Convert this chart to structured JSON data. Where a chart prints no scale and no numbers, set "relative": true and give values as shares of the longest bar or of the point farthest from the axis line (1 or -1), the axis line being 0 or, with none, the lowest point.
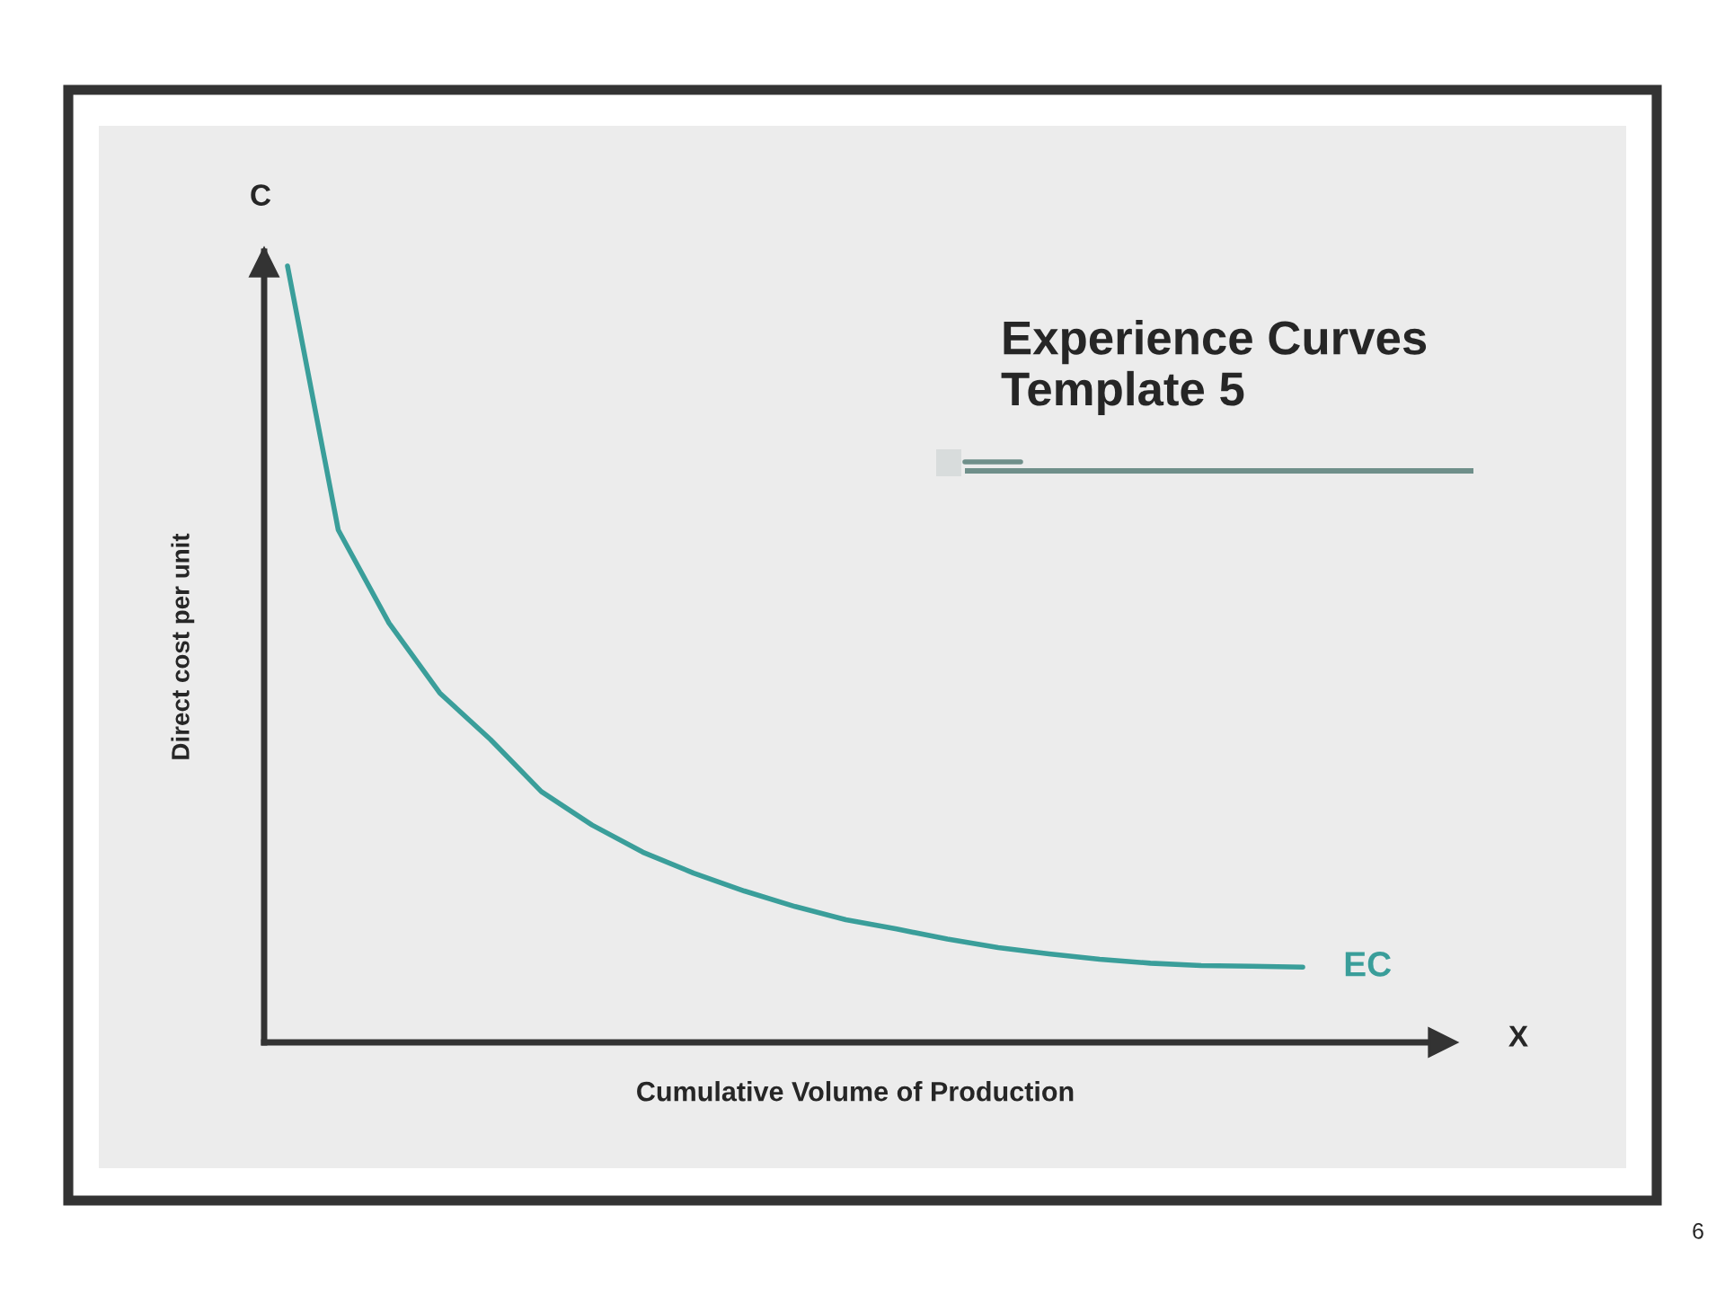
{
  "chart_data": {
    "type": "line",
    "title": "Experience Curves\nTemplate 5",
    "xlabel": "Cumulative Volume of Production",
    "ylabel": "Direct cost per unit",
    "relative": true,
    "grid": false,
    "categories": [
      null,
      null,
      null,
      null,
      null,
      null,
      null,
      null,
      null,
      null,
      null,
      null,
      null,
      null,
      null,
      null,
      null,
      null,
      null,
      null,
      null
    ],
    "series": [
      {
        "name": "EC",
        "color": "#3a9e9a",
        "values": [
          1.0,
          0.66,
          0.54,
          0.45,
          0.39,
          0.323,
          0.28,
          0.245,
          0.218,
          0.195,
          0.175,
          0.158,
          0.146,
          0.133,
          0.122,
          0.114,
          0.107,
          0.102,
          0.099,
          0.098,
          0.097
        ]
      }
    ],
    "annotations": [
      "C",
      "X",
      "6"
    ]
  }
}
